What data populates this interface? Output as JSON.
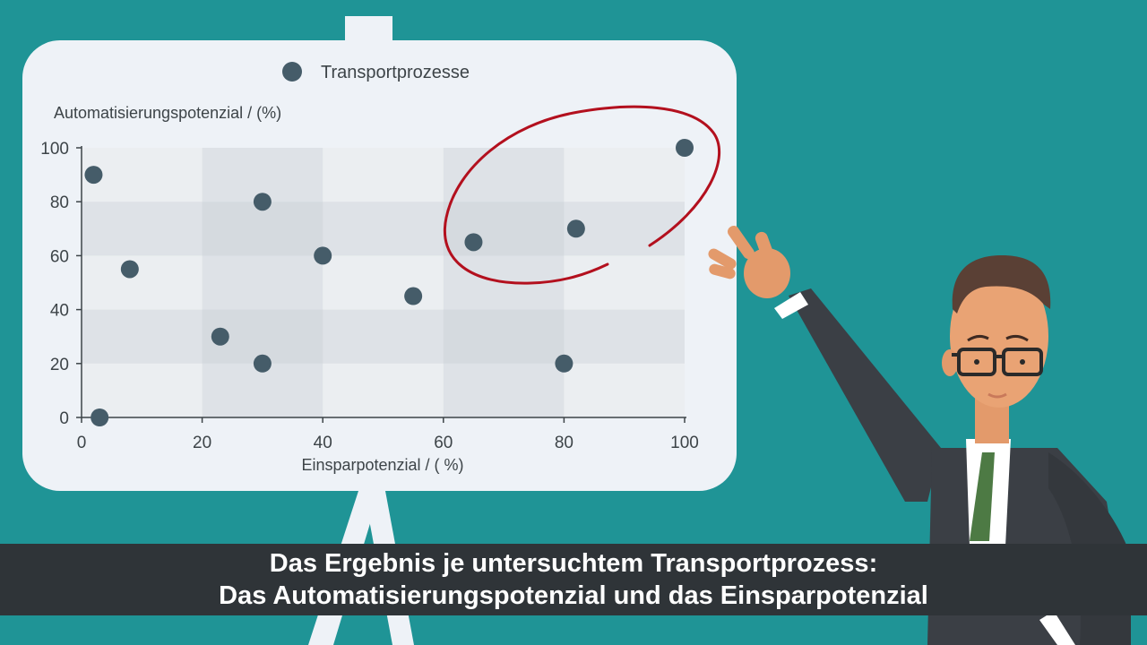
{
  "colors": {
    "background": "#1f9496",
    "board": "#eef2f7",
    "point": "#455c69",
    "highlight_circle": "#b3101e",
    "subtitle_bar": "#2f3438",
    "subtitle_text": "#ffffff"
  },
  "subtitle": {
    "line1": "Das Ergebnis je untersuchtem Transportprozess:",
    "line2": "Das Automatisierungspotenzial und das Einsparpotenzial"
  },
  "chart_data": {
    "type": "scatter",
    "title": "",
    "legend": {
      "position": "top-center",
      "entries": [
        "Transportprozesse"
      ]
    },
    "xlabel": "Einsparpotenzial  / ( %)",
    "ylabel": "Automatisierungspotenzial / (%)",
    "xlim": [
      0,
      100
    ],
    "ylim": [
      0,
      100
    ],
    "xticks": [
      0,
      20,
      40,
      60,
      80,
      100
    ],
    "yticks": [
      0,
      20,
      40,
      60,
      80,
      100
    ],
    "grid": "alternating bands",
    "series": [
      {
        "name": "Transportprozesse",
        "x": [
          2,
          3,
          8,
          23,
          30,
          30,
          40,
          55,
          65,
          80,
          82,
          100
        ],
        "y": [
          90,
          0,
          55,
          30,
          80,
          20,
          60,
          45,
          65,
          20,
          70,
          100
        ]
      }
    ],
    "annotations": [
      {
        "type": "hand-drawn circle",
        "color": "#b3101e",
        "encloses_points_x": [
          65,
          82,
          100
        ]
      }
    ]
  }
}
